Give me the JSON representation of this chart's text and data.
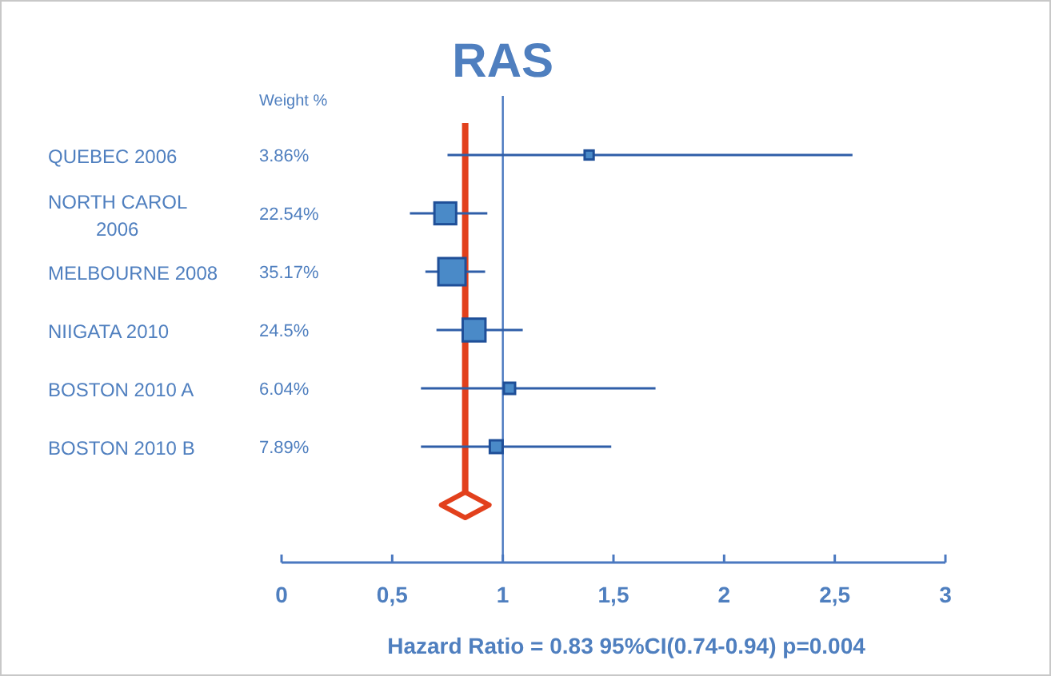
{
  "chart_data": {
    "type": "bubble",
    "orientation": "horizontal",
    "title": "RAS",
    "xlabel": "Hazard Ratio = 0.83 95%CI(0.74-0.94) p=0.004",
    "annotations": [
      "Weight %",
      "3.86%",
      "22.54%",
      "35.17%",
      "24.5%",
      "6.04%",
      "7.89%"
    ],
    "categories": [
      "QUEBEC 2006",
      "NORTH CAROL 2006",
      "MELBOURNE 2008",
      "NIIGATA 2010",
      "BOSTON 2010 A",
      "BOSTON 2010 B",
      null
    ],
    "series": [
      {
        "color": "#4a8ac8",
        "marker": "square",
        "values": [
          1.39,
          0.74,
          0.77,
          0.87,
          1.03,
          0.97,
          null
        ],
        "sizes": [
          0.11,
          0.64,
          1,
          0.7,
          0.17,
          0.22,
          null
        ],
        "errors": [
          [
            0.75,
            2.58
          ],
          [
            0.58,
            0.93
          ],
          [
            0.65,
            0.92
          ],
          [
            0.7,
            1.09
          ],
          [
            0.63,
            1.69
          ],
          [
            0.63,
            1.49
          ],
          null
        ]
      },
      {
        "type": "scatter",
        "marker": "diamond",
        "color": "#e2401c",
        "values": [
          null,
          null,
          null,
          null,
          null,
          null,
          0.83
        ]
      }
    ],
    "xlim": [
      0,
      3
    ],
    "xticks": [
      0,
      {
        "value": 0.5,
        "label": "0,5"
      },
      1,
      {
        "value": 1.5,
        "label": "1,5"
      },
      2,
      {
        "value": 2.5,
        "label": "2,5"
      },
      3
    ],
    "ref_lines": [
      {
        "axis": "x",
        "value": 1,
        "color": "#4a78c0"
      },
      {
        "axis": "x",
        "value": 0.83,
        "color": "#e2401c"
      }
    ]
  }
}
